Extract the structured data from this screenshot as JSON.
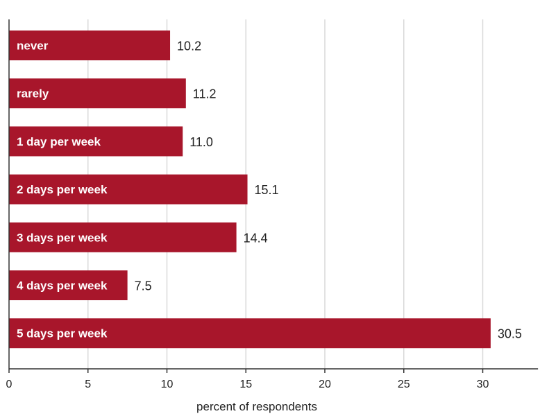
{
  "chart_data": {
    "type": "bar",
    "orientation": "horizontal",
    "categories": [
      "never",
      "rarely",
      "1 day per week",
      "2 days per week",
      "3 days per week",
      "4 days per week",
      "5 days per week"
    ],
    "values": [
      10.2,
      11.2,
      11.0,
      15.1,
      14.4,
      7.5,
      30.5
    ],
    "value_labels": [
      "10.2",
      "11.2",
      "11.0",
      "15.1",
      "14.4",
      "7.5",
      "30.5"
    ],
    "xlabel": "percent of respondents",
    "ylabel": "",
    "xlim": [
      0,
      33.5
    ],
    "xticks": [
      0,
      5,
      10,
      15,
      20,
      25,
      30
    ],
    "xtick_labels": [
      "0",
      "5",
      "10",
      "15",
      "20",
      "25",
      "30"
    ],
    "grid": "vertical",
    "legend": "none",
    "bar_color": "#a8162b",
    "bar_label_color": "#ffffff",
    "grid_color": "#d9d9d9",
    "axis_color": "#333333"
  }
}
